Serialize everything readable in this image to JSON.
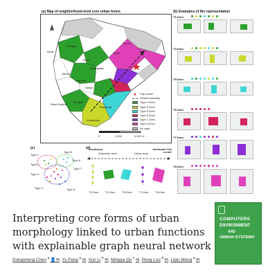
{
  "figure": {
    "panel_a_title": "(a) Map of neighborhood-level core urban forms",
    "panel_b_title": "(b) Examples of the representation",
    "panel_c_label": "(c)",
    "panel_d_label": "(d)",
    "map_labels": [
      "Yaohu",
      "Xinqiao",
      "Tianhu",
      "Hanlin",
      "Jinxin",
      "Shuangqiao",
      "Jianxia",
      "Xiaoxian",
      "Nanjie",
      "West Heights",
      "Tianqiao",
      "Huanjiang",
      "Kuangxiao"
    ],
    "legend": [
      {
        "label": "City center",
        "color": "#d62728",
        "kind": "star"
      },
      {
        "label": "Virtual boundary",
        "color": "#555555",
        "kind": "line"
      },
      {
        "label": "Type 1-Dom",
        "color": "#2ca02c",
        "kind": "box"
      },
      {
        "label": "Type 3-Dom",
        "color": "#c9d82b",
        "kind": "box"
      },
      {
        "label": "Type 5-Dom",
        "color": "#3fd6d6",
        "kind": "box"
      },
      {
        "label": "Type 6-Dom",
        "color": "#d1245a",
        "kind": "box"
      },
      {
        "label": "Type 7-Dom",
        "color": "#8b2fd6",
        "kind": "box"
      },
      {
        "label": "Type 8-Dom",
        "color": "#e040b8",
        "kind": "box"
      },
      {
        "label": "No data",
        "color": "#c8c8c8",
        "kind": "box"
      }
    ],
    "scale_labels": [
      "0",
      "2,500",
      "5,000 m"
    ],
    "b_rows": [
      {
        "label": "T1-Dom",
        "color": "#2ca02c"
      },
      {
        "label": "T3-Dom",
        "color": "#c9d82b"
      },
      {
        "label": "T5-Dom",
        "color": "#3fd6d6"
      },
      {
        "label": "T6-Dom",
        "color": "#d1245a"
      },
      {
        "label": "T7-Dom",
        "color": "#8b2fd6"
      },
      {
        "label": "T8-Dom",
        "color": "#e040b8"
      }
    ],
    "c_types": [
      "Type 1",
      "Type 2",
      "Type 3",
      "Type 4",
      "Type 5",
      "Type 6",
      "Type 7",
      "Type 8"
    ],
    "d_header": {
      "left": "Southwest",
      "mid1": "Suburban area",
      "mid2": "Urban area",
      "right": "Northeast City center"
    },
    "d_items": [
      "T3-Dom",
      "T1-Dom",
      "T5-Dom",
      "T7-Dom",
      "T6-Dom"
    ]
  },
  "paper": {
    "title": "Interpreting core forms of urban morphology linked to urban functions with explainable graph neural network",
    "authors": [
      "Dongsheng Chen",
      "Yu Feng",
      "Xun Li",
      "Mingya Qu",
      "Peng Luo",
      "Liqiu Meng"
    ]
  },
  "journal_cover": {
    "line1": "COMPUTERS",
    "line2": "ENVIRONMENT",
    "line3": "AND",
    "line4": "URBAN SYSTEMS"
  }
}
